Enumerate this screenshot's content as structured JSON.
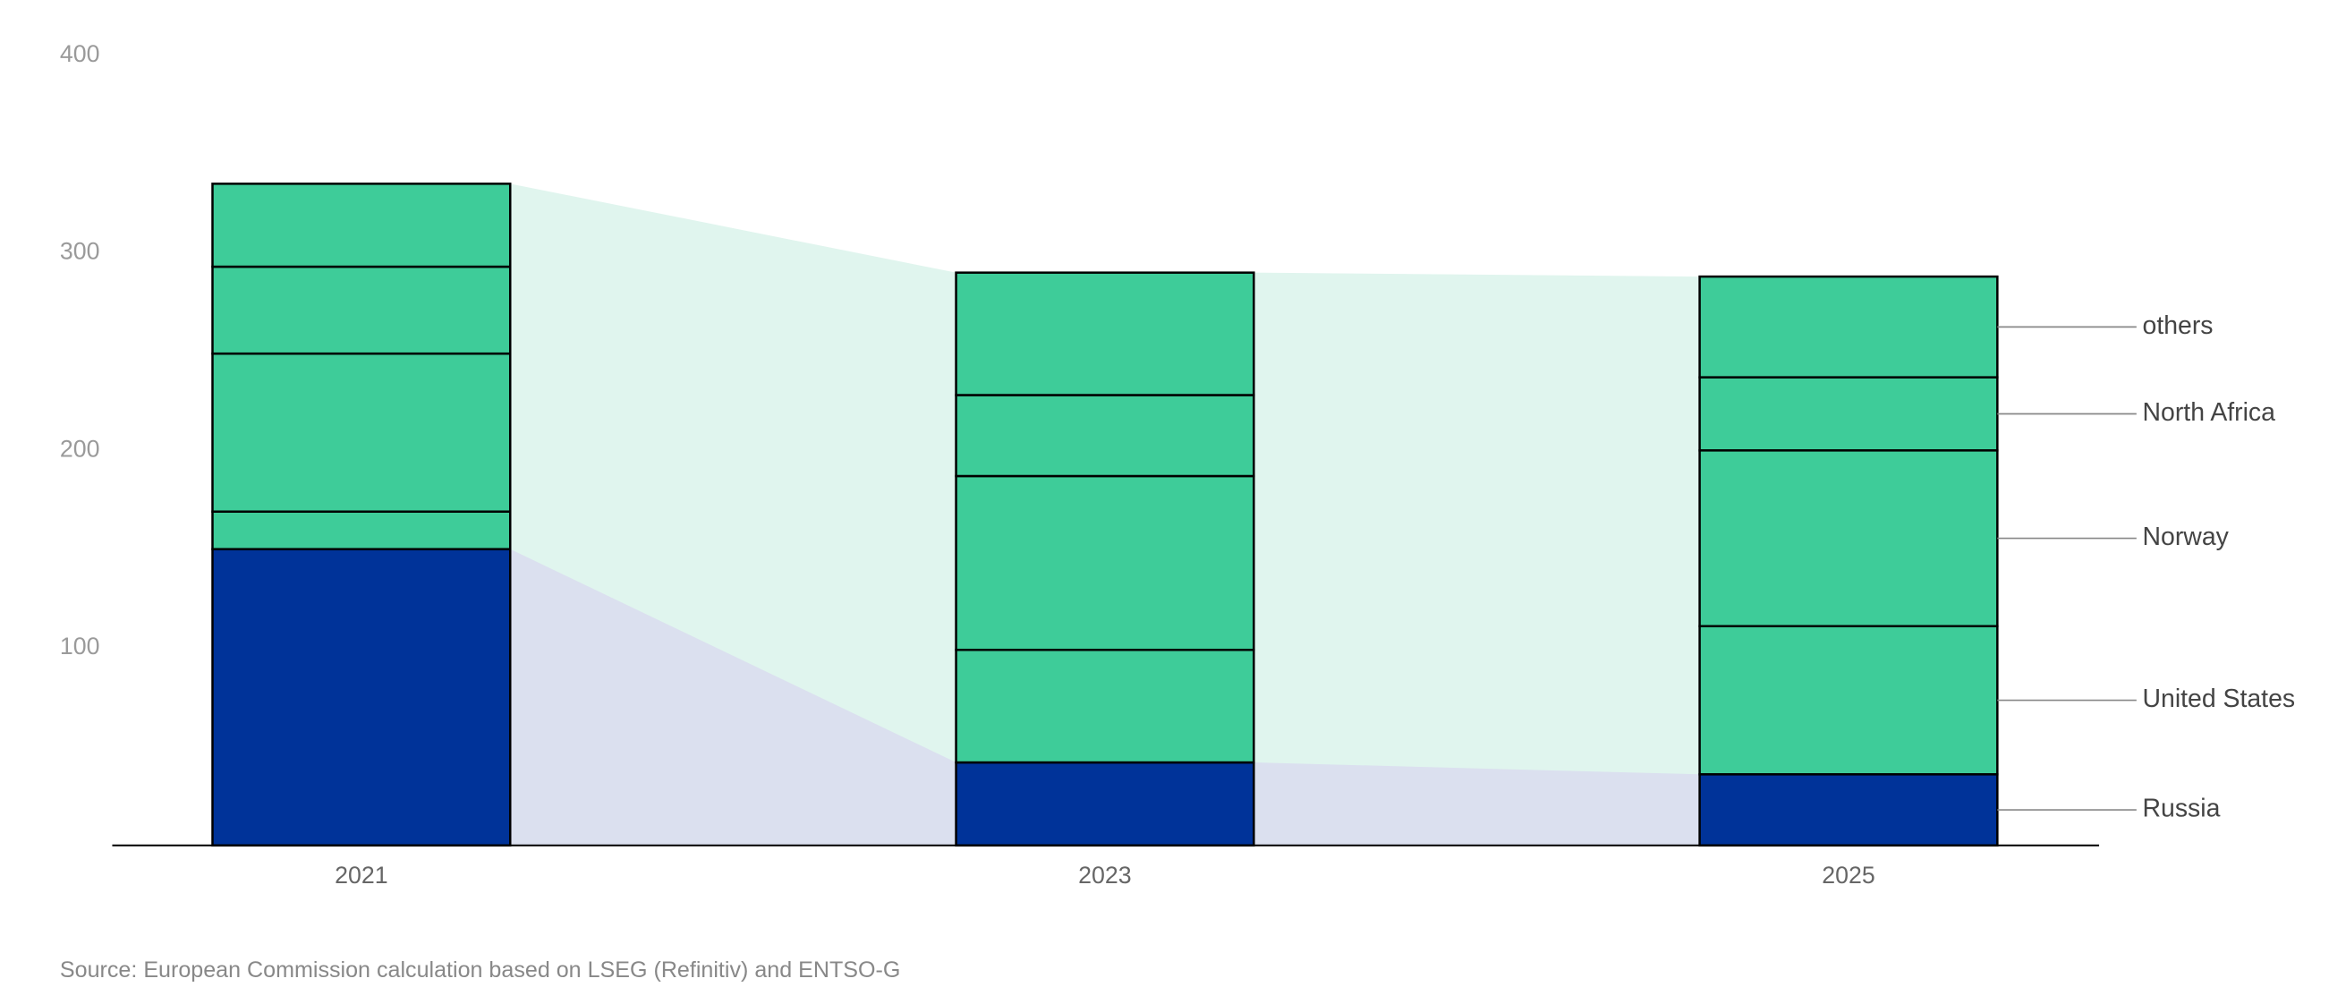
{
  "chart_data": {
    "type": "stacked-bar",
    "categories": [
      "2021",
      "2023",
      "2025"
    ],
    "series": [
      {
        "name": "Russia",
        "color": "#003399",
        "values": [
          150,
          42,
          36
        ]
      },
      {
        "name": "United States",
        "color": "#3ecc99",
        "values": [
          19,
          57,
          75
        ]
      },
      {
        "name": "Norway",
        "color": "#3ecc99",
        "values": [
          80,
          88,
          89
        ]
      },
      {
        "name": "North Africa",
        "color": "#3ecc99",
        "values": [
          44,
          41,
          37
        ]
      },
      {
        "name": "others",
        "color": "#3ecc99",
        "values": [
          42,
          62,
          51
        ]
      }
    ],
    "ylim": [
      0,
      400
    ],
    "yticks": [
      100,
      200,
      300,
      400
    ],
    "grid": false,
    "source": "Source: European Commission calculation based on LSEG (Refinitiv) and ENTSO-G"
  }
}
